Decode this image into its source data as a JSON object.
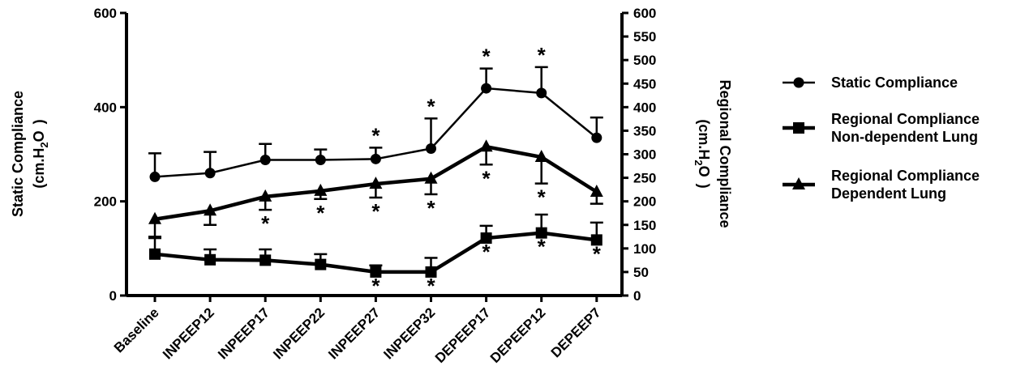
{
  "chart_data": {
    "type": "line",
    "categories": [
      "Baseline",
      "INPEEP12",
      "INPEEP17",
      "INPEEP22",
      "INPEEP27",
      "INPEEP32",
      "DEPEEP17",
      "DEPEEP12",
      "DEPEEP7"
    ],
    "ylabel_left": [
      "Static Compliance",
      "(cm.H",
      "2",
      "O",
      ")"
    ],
    "ylabel_right": [
      "Regional Compliance",
      "(cm.H",
      "2",
      "O",
      ")"
    ],
    "ylim_left": [
      0,
      600
    ],
    "yticks_left": [
      "0",
      "200",
      "400",
      "600"
    ],
    "ylim_right": [
      0,
      600
    ],
    "yticks_right": [
      "0",
      "50",
      "100",
      "150",
      "200",
      "250",
      "300",
      "350",
      "400",
      "450",
      "500",
      "550",
      "600"
    ],
    "grid": false,
    "legend_position": "right",
    "series": [
      {
        "name": "Static Compliance",
        "marker": "circle",
        "axis": "left",
        "values": [
          252,
          260,
          288,
          288,
          290,
          312,
          440,
          430,
          335
        ],
        "error_upper": [
          302,
          305,
          322,
          310,
          314,
          376,
          482,
          485,
          378
        ],
        "error_lower": [],
        "stars_above": [
          false,
          false,
          false,
          false,
          true,
          true,
          true,
          true,
          false
        ],
        "stars_below": [
          false,
          false,
          false,
          false,
          false,
          false,
          false,
          false,
          false
        ]
      },
      {
        "name": "Regional Compliance Non-dependent Lung",
        "marker": "square",
        "axis": "right",
        "values": [
          88,
          76,
          75,
          66,
          50,
          50,
          122,
          133,
          118
        ],
        "error_upper": [
          122,
          98,
          98,
          88,
          64,
          80,
          148,
          172,
          155
        ],
        "error_lower": [],
        "stars_above": [
          false,
          false,
          false,
          false,
          false,
          false,
          false,
          false,
          false
        ],
        "stars_below": [
          false,
          false,
          false,
          false,
          true,
          true,
          true,
          true,
          true
        ]
      },
      {
        "name": "Regional Compliance Dependent Lung",
        "marker": "triangle",
        "axis": "right",
        "values": [
          162,
          180,
          210,
          222,
          237,
          248,
          316,
          294,
          220
        ],
        "error_upper": [],
        "error_lower": [
          125,
          150,
          182,
          205,
          208,
          215,
          278,
          238,
          195
        ],
        "stars_above": [
          false,
          false,
          false,
          false,
          false,
          false,
          false,
          false,
          false
        ],
        "stars_below": [
          false,
          false,
          true,
          true,
          true,
          true,
          true,
          true,
          false
        ]
      }
    ],
    "star_symbol": "*"
  }
}
